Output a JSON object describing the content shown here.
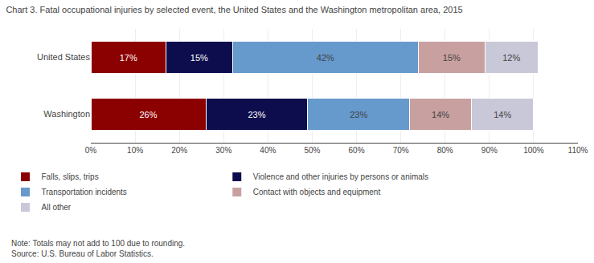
{
  "chart_data": {
    "type": "bar",
    "orientation": "horizontal",
    "stacked": true,
    "title": "Chart 3. Fatal occupational injuries by selected event, the United States and the Washington metropolitan area, 2015",
    "categories": [
      "United States",
      "Washington"
    ],
    "series": [
      {
        "name": "Falls, slips, trips",
        "color": "#8B0000",
        "values": [
          17,
          26
        ],
        "value_labels": [
          "17%",
          "26%"
        ]
      },
      {
        "name": "Violence and other injuries by persons or animals",
        "color": "#0D0D4D",
        "values": [
          15,
          23
        ],
        "value_labels": [
          "15%",
          "23%"
        ]
      },
      {
        "name": "Transportation incidents",
        "color": "#6699CC",
        "values": [
          42,
          23
        ],
        "value_labels": [
          "42%",
          "23%"
        ]
      },
      {
        "name": "Contact with objects and equipment",
        "color": "#C8A0A0",
        "values": [
          15,
          14
        ],
        "value_labels": [
          "15%",
          "14%"
        ]
      },
      {
        "name": "All other",
        "color": "#C8C8D8",
        "values": [
          12,
          14
        ],
        "value_labels": [
          "12%",
          "14%"
        ]
      }
    ],
    "xlim": [
      0,
      110
    ],
    "xticks": [
      {
        "value": 0,
        "label": "0%"
      },
      {
        "value": 10,
        "label": "10%"
      },
      {
        "value": 20,
        "label": "20%"
      },
      {
        "value": 30,
        "label": "30%"
      },
      {
        "value": 40,
        "label": "40%"
      },
      {
        "value": 50,
        "label": "50%"
      },
      {
        "value": 60,
        "label": "60%"
      },
      {
        "value": 70,
        "label": "70%"
      },
      {
        "value": 80,
        "label": "80%"
      },
      {
        "value": 90,
        "label": "90%"
      },
      {
        "value": 100,
        "label": "100%"
      },
      {
        "value": 110,
        "label": "110%"
      }
    ],
    "grid": true,
    "data_labels": true,
    "legend": "bottom",
    "annotations": [
      "Note: Totals may not add to 100 due to rounding.",
      "Source: U.S. Bureau of Labor Statistics."
    ]
  }
}
